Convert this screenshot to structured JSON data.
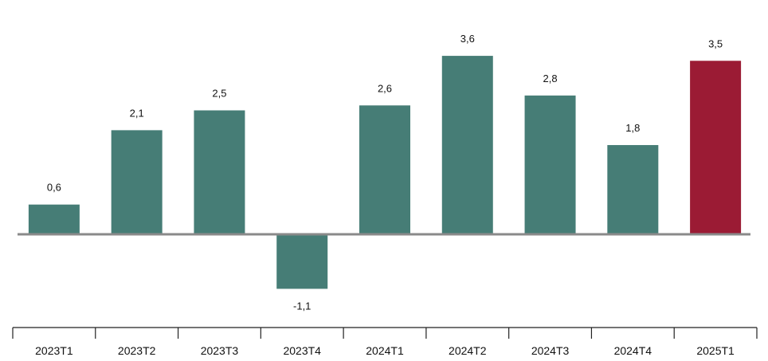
{
  "chart_data": {
    "type": "bar",
    "title": "",
    "xlabel": "",
    "ylabel": "",
    "categories": [
      "2023T1",
      "2023T2",
      "2023T3",
      "2023T4",
      "2024T1",
      "2024T2",
      "2024T3",
      "2024T4",
      "2025T1"
    ],
    "values": [
      0.6,
      2.1,
      2.5,
      -1.1,
      2.6,
      3.6,
      2.8,
      1.8,
      3.5
    ],
    "value_labels": [
      "0,6",
      "2,1",
      "2,5",
      "-1,1",
      "2,6",
      "3,6",
      "2,8",
      "1,8",
      "3,5"
    ],
    "highlight_index": 8,
    "ylim": [
      -2.5,
      4.5
    ],
    "grid": false,
    "legend": "none",
    "colors": {
      "bar": "#467d76",
      "highlight": "#9b1b34",
      "zero_line": "#8a8a8a",
      "axis": "#222222"
    }
  }
}
